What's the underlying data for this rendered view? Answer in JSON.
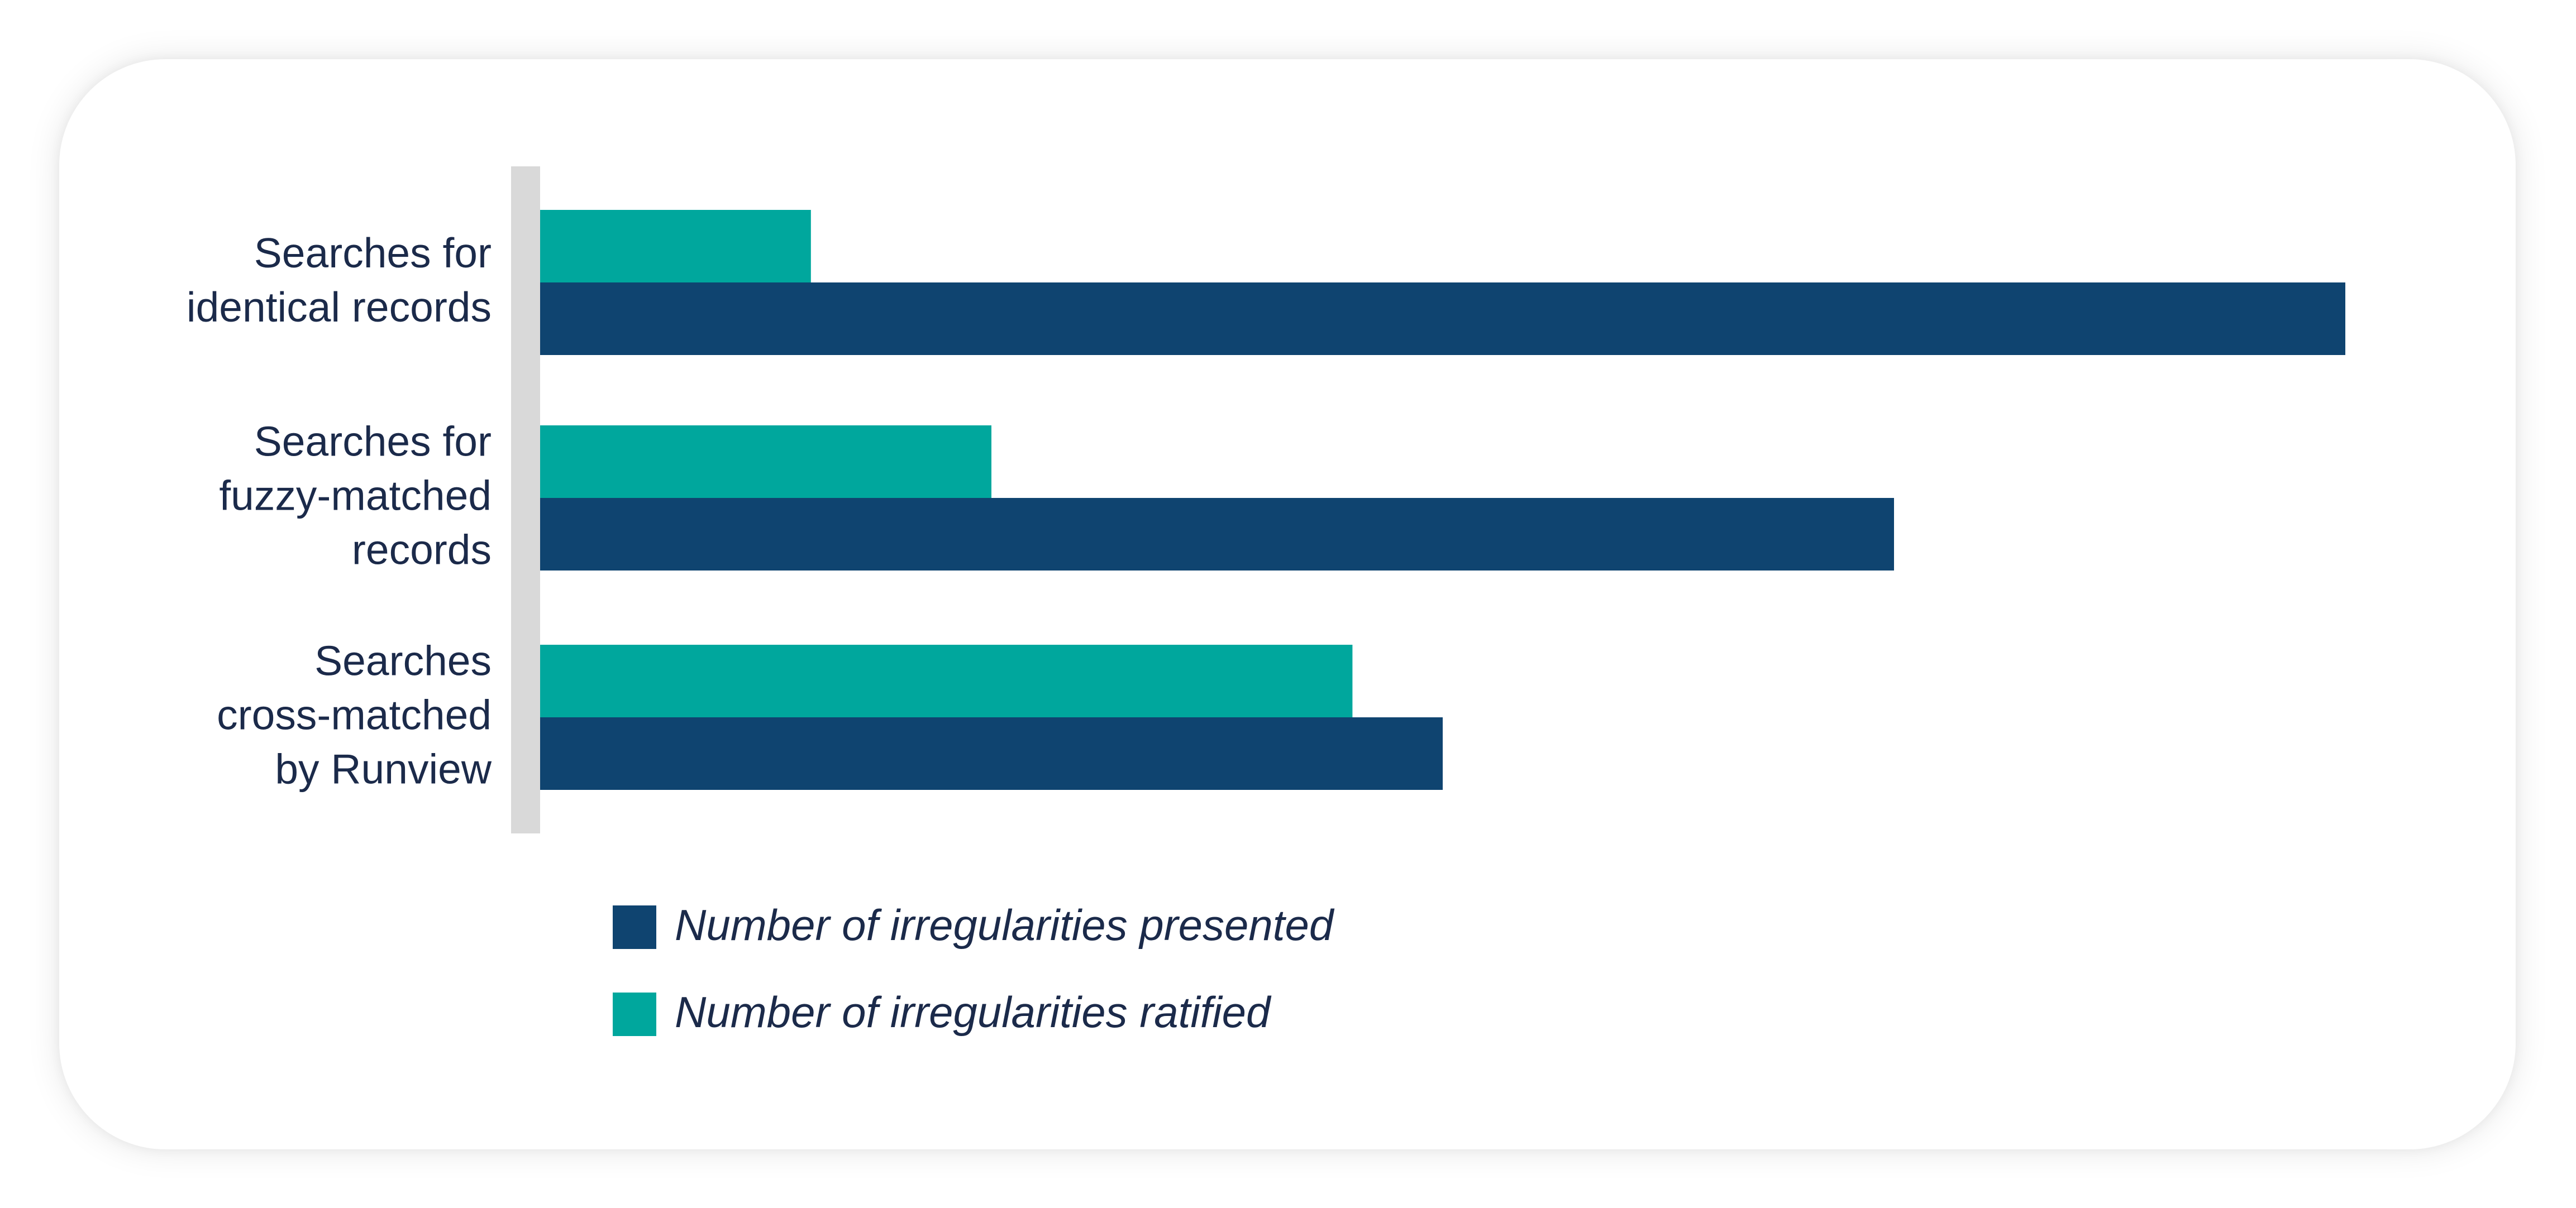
{
  "chart_data": {
    "type": "bar",
    "orientation": "horizontal",
    "categories": [
      [
        "Searches for",
        "identical records"
      ],
      [
        "Searches for",
        "fuzzy-matched",
        "records"
      ],
      [
        "Searches",
        "cross-matched",
        "by Runview"
      ]
    ],
    "series": [
      {
        "name": "Number of irregularities ratified",
        "color": "#00a79d",
        "values": [
          15,
          25,
          45
        ]
      },
      {
        "name": "Number of irregularities presented",
        "color": "#0f4470",
        "values": [
          100,
          75,
          50
        ]
      }
    ],
    "xlim": [
      0,
      100
    ],
    "axis_color": "#d9d9d9",
    "grid": false,
    "legend": {
      "placement": "bottom-left",
      "order": [
        "Number of irregularities presented",
        "Number of irregularities ratified"
      ]
    }
  }
}
